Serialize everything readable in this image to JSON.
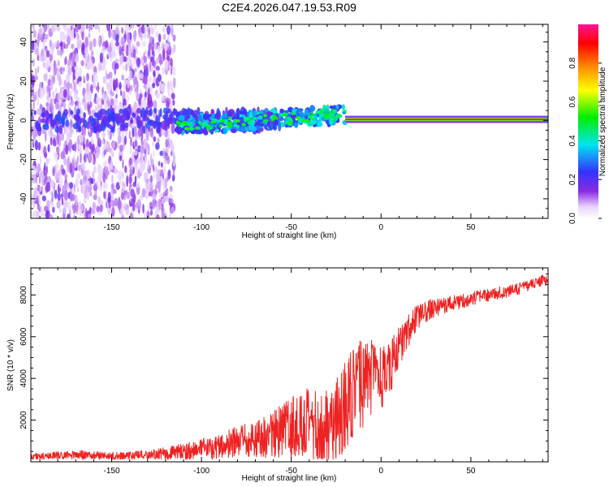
{
  "title": "C2E4.2026.047.19.53.R09",
  "colors": {
    "axis": "#000000",
    "snr_line": "#ee2222",
    "background": "#ffffff"
  },
  "chart_data": [
    {
      "type": "heatmap",
      "title": "C2E4.2026.047.19.53.R09",
      "xlabel": "Height of straight line (km)",
      "ylabel": "Frequency (Hz)",
      "xlim": [
        -195,
        93
      ],
      "ylim": [
        -50,
        49
      ],
      "xticks": [
        -150,
        -100,
        -50,
        0,
        50
      ],
      "yticks": [
        -40,
        -20,
        0,
        20,
        40
      ],
      "colorbar": {
        "label": "Normalized spectral amplitude",
        "range": [
          0,
          1
        ],
        "ticks": [
          0.0,
          0.2,
          0.4,
          0.6,
          0.8
        ],
        "colormap": "white-violet-blue-cyan-green-yellow-orange-red-magenta"
      },
      "features": [
        {
          "name": "diffuse noise",
          "x_range": [
            -195,
            -115
          ],
          "freq_range": [
            -50,
            49
          ],
          "amplitude": 0.12
        },
        {
          "name": "signal track",
          "x_range": [
            -115,
            -20
          ],
          "freq_start": -3,
          "freq_end": 3,
          "amplitude": 0.4
        },
        {
          "name": "strong carrier",
          "x_range": [
            -20,
            93
          ],
          "freq": 0.5,
          "amplitude": 0.95
        }
      ]
    },
    {
      "type": "line",
      "xlabel": "Height of straight line (km)",
      "ylabel": "SNR (10 * v/v)",
      "xlim": [
        -195,
        93
      ],
      "ylim": [
        0,
        9300
      ],
      "xticks": [
        -150,
        -100,
        -50,
        0,
        50
      ],
      "yticks": [
        2000,
        4000,
        6000,
        8000
      ],
      "series": [
        {
          "name": "SNR",
          "x": [
            -195,
            -180,
            -170,
            -160,
            -150,
            -140,
            -130,
            -120,
            -110,
            -100,
            -90,
            -80,
            -70,
            -60,
            -55,
            -50,
            -45,
            -40,
            -35,
            -30,
            -25,
            -20,
            -15,
            -10,
            -5,
            0,
            5,
            10,
            15,
            20,
            25,
            30,
            35,
            40,
            45,
            50,
            55,
            60,
            65,
            70,
            75,
            80,
            85,
            90,
            93
          ],
          "values": [
            250,
            300,
            350,
            300,
            280,
            300,
            330,
            400,
            500,
            600,
            750,
            900,
            1100,
            1300,
            1500,
            1700,
            1800,
            1700,
            1500,
            1600,
            2100,
            2700,
            3200,
            3800,
            4100,
            4000,
            4500,
            5500,
            6300,
            6900,
            7200,
            7400,
            7500,
            7600,
            7700,
            7800,
            7900,
            8000,
            8100,
            8150,
            8250,
            8400,
            8550,
            8700,
            8650
          ],
          "noise_amplitude": [
            150,
            200,
            220,
            200,
            180,
            200,
            220,
            300,
            400,
            500,
            600,
            800,
            900,
            1100,
            1300,
            1500,
            1700,
            1800,
            1900,
            2000,
            2100,
            2300,
            2400,
            2200,
            1800,
            1500,
            1300,
            1000,
            800,
            600,
            500,
            450,
            400,
            380,
            350,
            330,
            320,
            300,
            300,
            280,
            280,
            260,
            250,
            250,
            250
          ]
        }
      ]
    }
  ]
}
